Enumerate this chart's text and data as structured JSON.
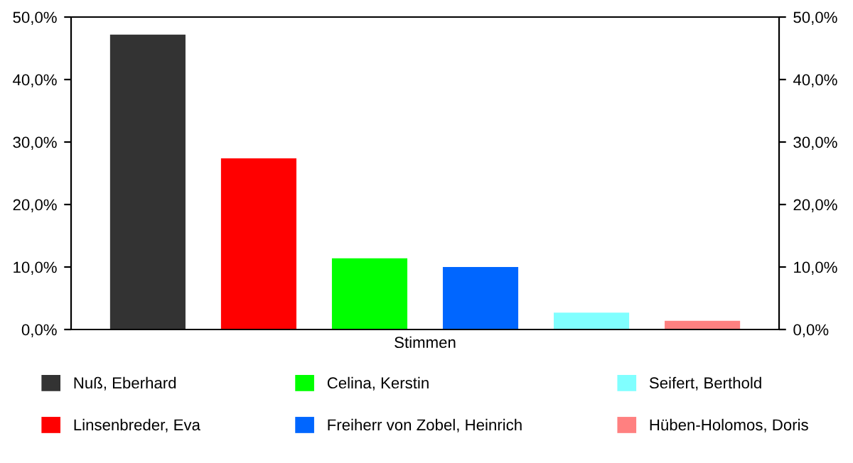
{
  "chart_data": {
    "type": "bar",
    "categories": [
      "Stimmen"
    ],
    "series": [
      {
        "name": "Nuß, Eberhard",
        "color": "#333333",
        "values": [
          47.2
        ]
      },
      {
        "name": "Linsenbreder, Eva",
        "color": "#ff0000",
        "values": [
          27.4
        ]
      },
      {
        "name": "Celina, Kerstin",
        "color": "#00ff00",
        "values": [
          11.4
        ]
      },
      {
        "name": "Freiherr von Zobel, Heinrich",
        "color": "#0066ff",
        "values": [
          10.0
        ]
      },
      {
        "name": "Seifert, Berthold",
        "color": "#80ffff",
        "values": [
          2.7
        ]
      },
      {
        "name": "Hüben-Holomos, Doris",
        "color": "#ff8080",
        "values": [
          1.4
        ]
      }
    ],
    "ylim": [
      0,
      50
    ],
    "yticks": [
      {
        "value": 0,
        "label": "0,0%"
      },
      {
        "value": 10,
        "label": "10,0%"
      },
      {
        "value": 20,
        "label": "20,0%"
      },
      {
        "value": 30,
        "label": "30,0%"
      },
      {
        "value": 40,
        "label": "40,0%"
      },
      {
        "value": 50,
        "label": "50,0%"
      }
    ],
    "grid": false,
    "legend": "bottom"
  }
}
